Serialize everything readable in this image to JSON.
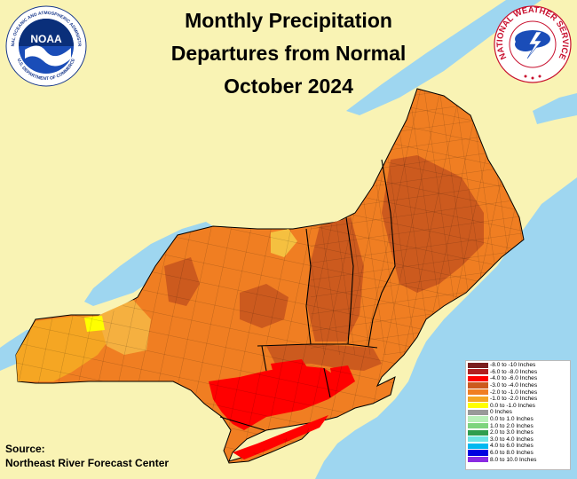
{
  "title": {
    "line1": "Monthly Precipitation",
    "line2": "Departures from Normal",
    "line3": "October 2024"
  },
  "logos": {
    "noaa": {
      "icon": "noaa-logo",
      "center_text": "NOAA",
      "ring_text_top": "NATIONAL OCEANIC AND ATMOSPHERIC ADMINISTRATION",
      "ring_text_bottom": "U.S. DEPARTMENT OF COMMERCE"
    },
    "nws": {
      "icon": "nws-logo",
      "ring_text": "NATIONAL WEATHER SERVICE"
    }
  },
  "source": {
    "label": "Source:",
    "value": "Northeast River Forecast Center"
  },
  "colors": {
    "background": "#f9f3b4",
    "water": "#9ed6f0",
    "boundary": "#000000"
  },
  "legend": {
    "items": [
      {
        "label": "-8.0 to -10 Inches",
        "color": "#7a1e1e"
      },
      {
        "label": "-6.0 to -8.0 Inches",
        "color": "#b02020"
      },
      {
        "label": "-4.0 to -6.0 Inches",
        "color": "#ff0000"
      },
      {
        "label": "-3.0 to -4.0 Inches",
        "color": "#cc5a1e"
      },
      {
        "label": "-2.0 to -1.0 Inches",
        "color": "#f07e22"
      },
      {
        "label": "-1.0 to -2.0 Inches",
        "color": "#f5a623"
      },
      {
        "label": "0.0 to -1.0 Inches",
        "color": "#ffff00"
      },
      {
        "label": "0 Inches",
        "color": "#999999"
      },
      {
        "label": "0.0 to 1.0 Inches",
        "color": "#b9f0b9"
      },
      {
        "label": "1.0 to 2.0 Inches",
        "color": "#7ed47e"
      },
      {
        "label": "2.0 to 3.0 Inches",
        "color": "#2e9e4e"
      },
      {
        "label": "3.0 to 4.0 Inches",
        "color": "#6ee6e6"
      },
      {
        "label": "4.0 to 6.0 Inches",
        "color": "#00b8f0"
      },
      {
        "label": "6.0 to 8.0 Inches",
        "color": "#0000e0"
      },
      {
        "label": "8.0 to 10.0 Inches",
        "color": "#8a2be2"
      }
    ]
  }
}
